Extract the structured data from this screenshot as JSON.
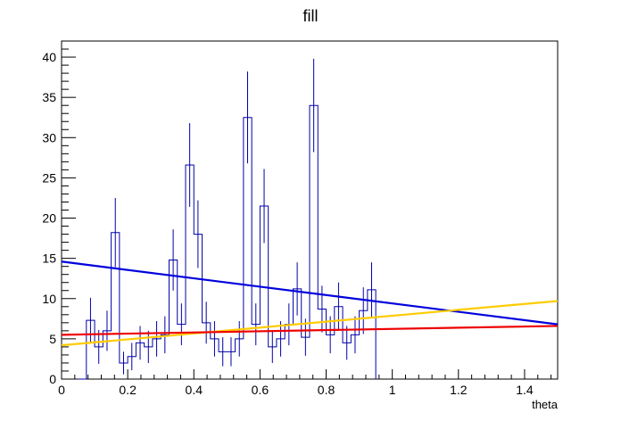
{
  "chart_data": {
    "type": "histogram",
    "title": "fill",
    "xlabel": "theta",
    "ylabel": "",
    "xlim": [
      0,
      1.5
    ],
    "ylim": [
      0,
      42
    ],
    "xticks": [
      "0",
      "0.2",
      "0.4",
      "0.6",
      "0.8",
      "1",
      "1.2",
      "1.4"
    ],
    "yticks": [
      "0",
      "5",
      "10",
      "15",
      "20",
      "25",
      "30",
      "35",
      "40"
    ],
    "grid": false,
    "legend": "none",
    "histogram": {
      "color": "#0000aa",
      "bin_width": 0.025,
      "x0": 0.05,
      "values": [
        0,
        7.3,
        4,
        6,
        18.2,
        2,
        2.8,
        4.5,
        4,
        5,
        5.5,
        14.8,
        6.8,
        26.6,
        18,
        7,
        5,
        3.4,
        3.4,
        5,
        32.5,
        6.8,
        21.5,
        4,
        5,
        6.8,
        11.2,
        5.2,
        34,
        8.7,
        5.5,
        9,
        4.5,
        5.5,
        8.5,
        11.1
      ],
      "errors": [
        0,
        2.8,
        2.1,
        2.5,
        4.3,
        1.4,
        1.7,
        2.1,
        2.0,
        2.2,
        2.3,
        3.8,
        2.6,
        5.2,
        4.2,
        2.6,
        2.2,
        1.8,
        1.8,
        2.2,
        5.7,
        2.6,
        4.6,
        2.0,
        2.2,
        2.6,
        3.3,
        2.3,
        5.8,
        2.9,
        2.3,
        3.0,
        2.1,
        2.3,
        2.9,
        3.4
      ]
    },
    "series": [
      {
        "type": "line",
        "color": "#0000dd",
        "x": [
          0,
          1.5
        ],
        "y": [
          14.6,
          6.8
        ]
      },
      {
        "type": "line",
        "color": "#ffcc00",
        "x": [
          0,
          1.5
        ],
        "y": [
          4.2,
          9.7
        ]
      },
      {
        "type": "line",
        "color": "#ee0000",
        "x": [
          0,
          1.5
        ],
        "y": [
          5.5,
          6.6
        ]
      }
    ]
  }
}
